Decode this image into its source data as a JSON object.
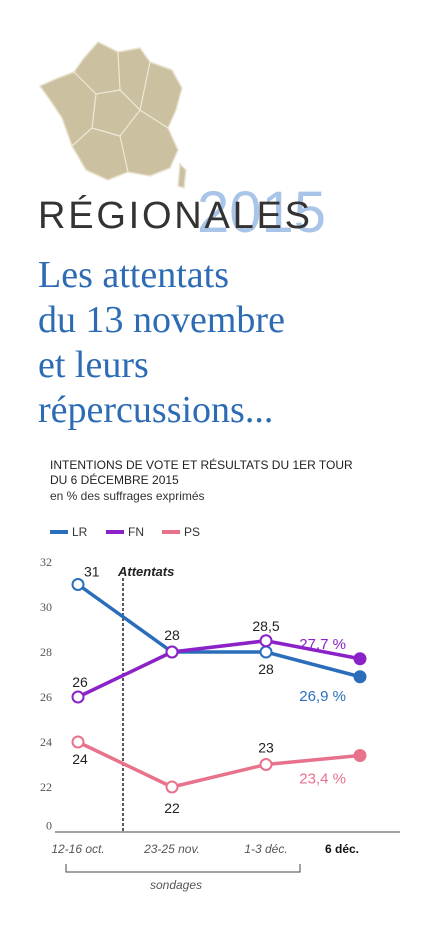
{
  "chart_data": {
    "type": "line",
    "kicker": "RÉGIONALES",
    "kicker_year": "2015",
    "title_lines": [
      "Les attentats",
      "du 13 novembre",
      "et leurs",
      "répercussions..."
    ],
    "subtitle_lines": [
      "INTENTIONS DE VOTE ET RÉSULTATS DU 1ER TOUR",
      "DU 6 DÉCEMBRE 2015"
    ],
    "units": "en % des suffrages exprimés",
    "annotation": "Attentats",
    "group_label": "sondages",
    "categories": [
      "12-16 oct.",
      "23-25 nov.",
      "1-3 déc.",
      "6 déc."
    ],
    "series": [
      {
        "name": "LR",
        "color": "#2a6ebb",
        "values": [
          31,
          28,
          28,
          26.9
        ],
        "value_labels": [
          "31",
          null,
          "28",
          "26,9 %"
        ]
      },
      {
        "name": "FN",
        "color": "#8a22c8",
        "values": [
          26,
          28,
          28.5,
          27.7
        ],
        "value_labels": [
          "26",
          "28",
          "28,5",
          "27,7 %"
        ]
      },
      {
        "name": "PS",
        "color": "#e8728c",
        "values": [
          24,
          22,
          23,
          23.4
        ],
        "value_labels": [
          "24",
          "22",
          "23",
          "23,4 %"
        ]
      }
    ],
    "ylim": [
      21,
      32
    ],
    "yticks": [
      0,
      22,
      24,
      26,
      28,
      30,
      32
    ],
    "axis_break": true
  }
}
